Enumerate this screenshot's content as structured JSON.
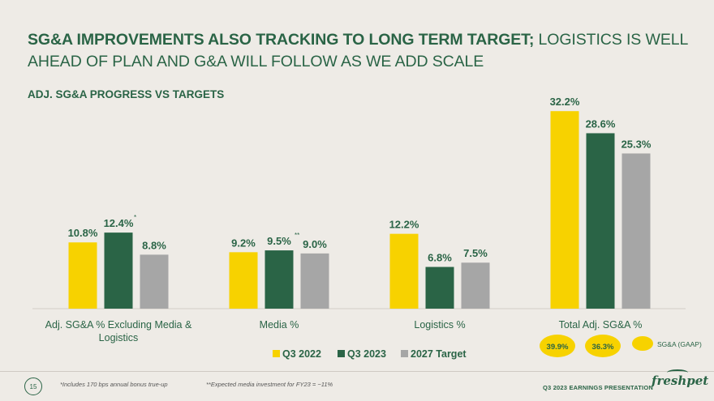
{
  "header": {
    "title_bold": "SG&A IMPROVEMENTS ALSO TRACKING TO LONG TERM TARGET;",
    "title_rest": " LOGISTICS IS WELL AHEAD OF PLAN AND G&A WILL FOLLOW AS WE ADD SCALE",
    "subtitle": "ADJ. SG&A PROGRESS VS TARGETS"
  },
  "chart_data": {
    "type": "bar",
    "categories": [
      "Adj. SG&A % Excluding Media & Logistics",
      "Media %",
      "Logistics %",
      "Total Adj. SG&A %"
    ],
    "category_lines": [
      [
        "Adj. SG&A % Excluding Media &",
        "Logistics"
      ],
      [
        "Media %"
      ],
      [
        "Logistics %"
      ],
      [
        "Total Adj. SG&A %"
      ]
    ],
    "series": [
      {
        "name": "Q3 2022",
        "color": "#f7d200",
        "values": [
          10.8,
          9.2,
          12.2,
          32.2
        ],
        "labels": [
          "10.8%",
          "9.2%",
          "12.2%",
          "32.2%"
        ]
      },
      {
        "name": "Q3 2023",
        "color": "#2a6446",
        "values": [
          12.4,
          9.5,
          6.8,
          28.6
        ],
        "labels": [
          "12.4%",
          "9.5%",
          "6.8%",
          "28.6%"
        ]
      },
      {
        "name": "2027 Target",
        "color": "#a6a6a6",
        "values": [
          8.8,
          9.0,
          7.5,
          25.3
        ],
        "labels": [
          "8.8%",
          "9.0%",
          "7.5%",
          "25.3%"
        ]
      }
    ],
    "label_marks": [
      {
        "category": 0,
        "series": 1,
        "mark": "*"
      },
      {
        "category": 1,
        "series": 1,
        "mark": "**"
      }
    ],
    "ylim": [
      0,
      35
    ],
    "legend_position": "bottom",
    "gaap": {
      "values": [
        "39.9%",
        "36.3%"
      ],
      "legend": "SG&A (GAAP)",
      "color": "#f7d200"
    }
  },
  "footer": {
    "page_number": "15",
    "footnote1": "*Includes 170 bps annual bonus true-up",
    "footnote2": "**Expected media investment for FY23 = ~11%",
    "presentation": "Q3 2023 EARNINGS PRESENTATION",
    "brand": "freshpet"
  }
}
